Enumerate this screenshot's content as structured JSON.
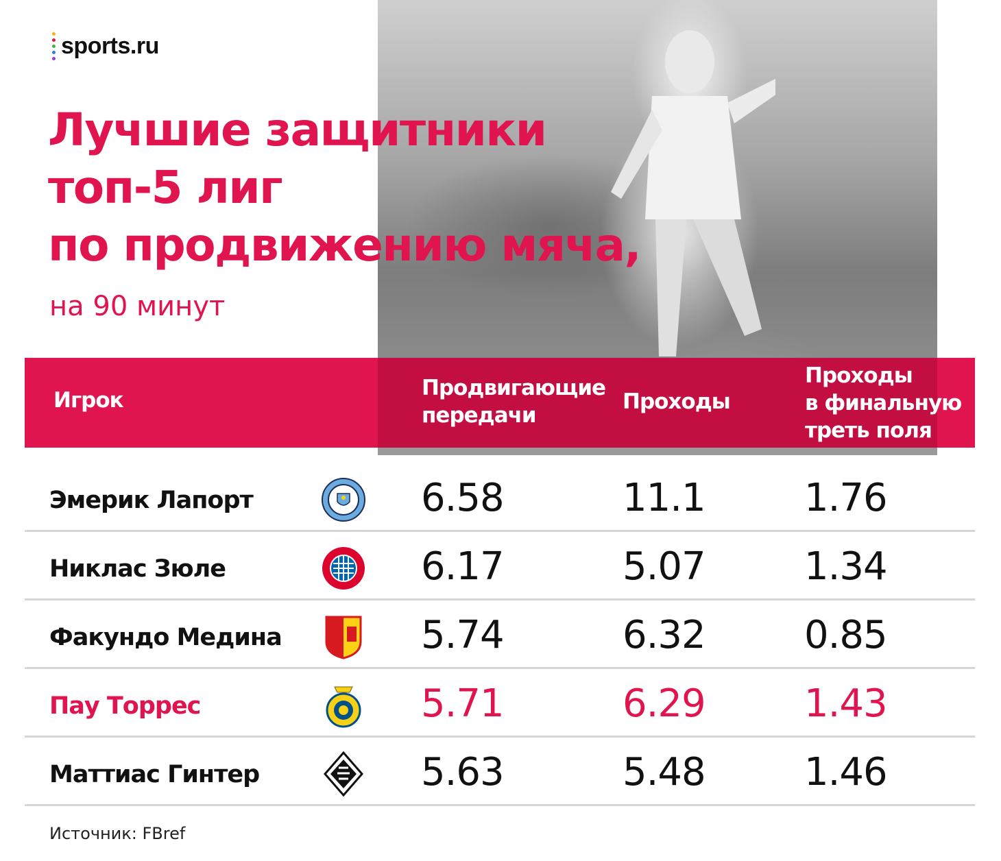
{
  "brand": {
    "name": "sports.ru",
    "dot_colors": [
      "#f7b500",
      "#e0144f",
      "#3bb54a",
      "#2f7fe0",
      "#9b3bd6"
    ]
  },
  "title_lines": [
    "Лучшие защитники",
    "топ-5 лиг",
    "по продвижению мяча,"
  ],
  "subtitle": "на 90 минут",
  "colors": {
    "accent": "#e0144f",
    "text": "#111111",
    "separator": "#d6d6d6"
  },
  "table": {
    "headers": {
      "player": "Игрок",
      "progressive_passes": [
        "Продвигающие",
        "передачи"
      ],
      "carries": "Проходы",
      "final_third_carries": [
        "Проходы",
        "в финальную",
        "треть поля"
      ]
    },
    "rows": [
      {
        "player": "Эмерик Лапорт",
        "crest": "manchester-city-crest",
        "progressive_passes": "6.58",
        "carries": "11.1",
        "final_third": "1.76",
        "highlight": false
      },
      {
        "player": "Никлас Зюле",
        "crest": "bayern-munich-crest",
        "progressive_passes": "6.17",
        "carries": "5.07",
        "final_third": "1.34",
        "highlight": false
      },
      {
        "player": "Факундо Медина",
        "crest": "rc-lens-crest",
        "progressive_passes": "5.74",
        "carries": "6.32",
        "final_third": "0.85",
        "highlight": false
      },
      {
        "player": "Пау Торрес",
        "crest": "villarreal-crest",
        "progressive_passes": "5.71",
        "carries": "6.29",
        "final_third": "1.43",
        "highlight": true
      },
      {
        "player": "Маттиас Гинтер",
        "crest": "borussia-monchengladbach-crest",
        "progressive_passes": "5.63",
        "carries": "5.48",
        "final_third": "1.46",
        "highlight": false
      }
    ]
  },
  "source": "Источник: FBref"
}
